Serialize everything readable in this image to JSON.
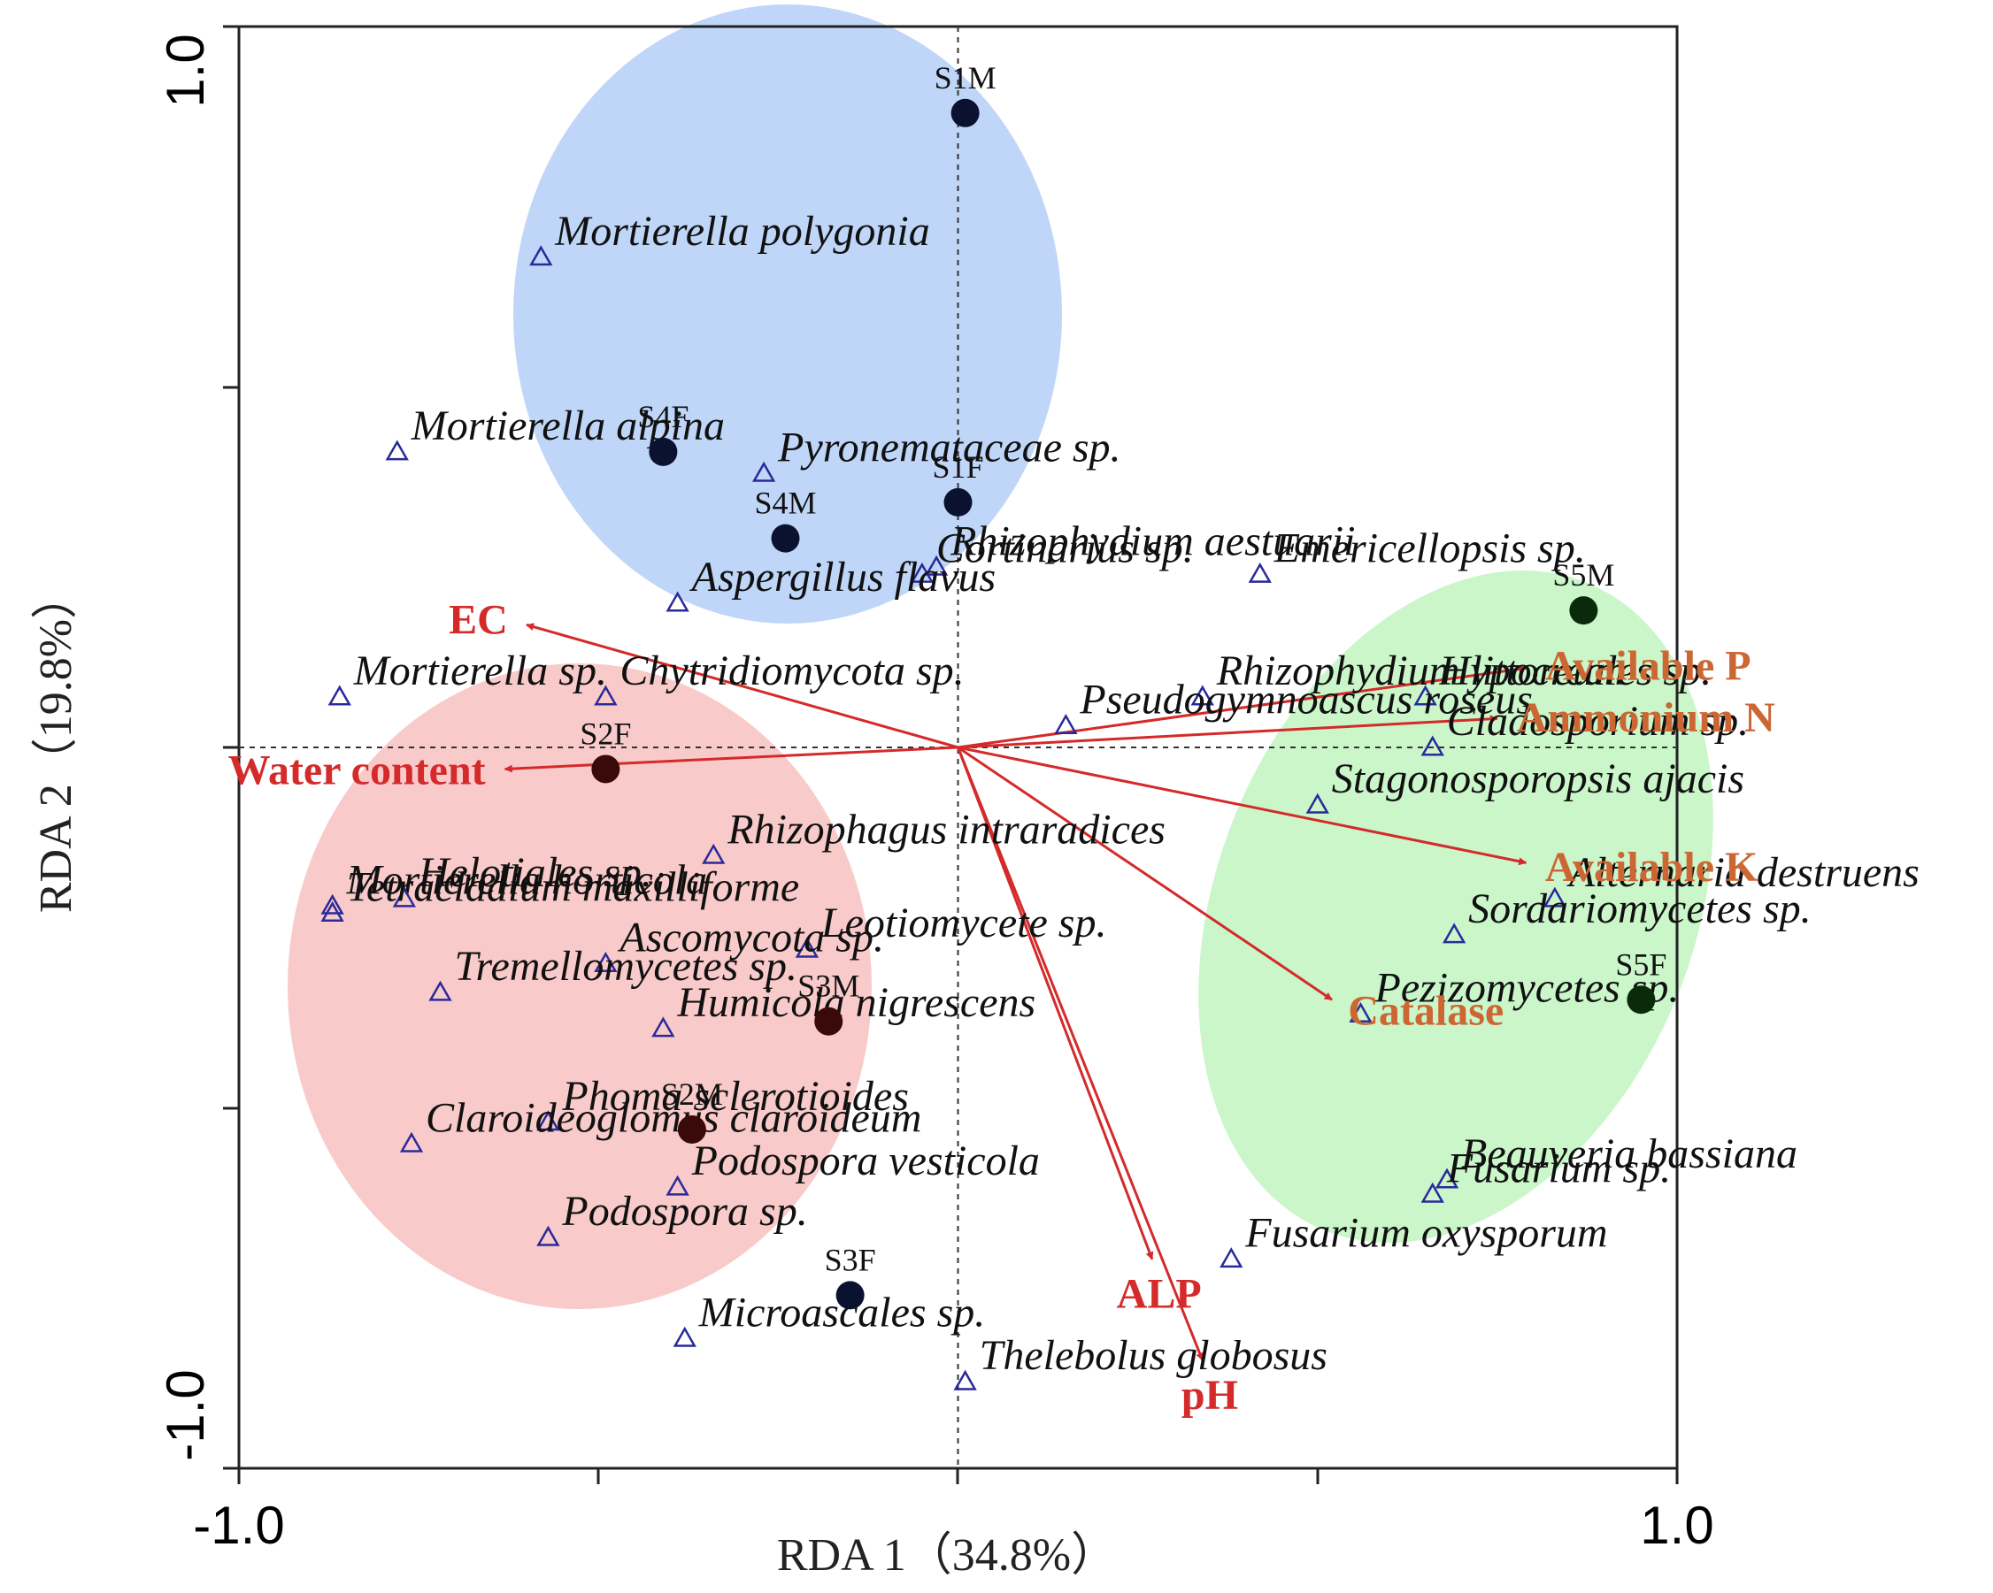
{
  "chart_data": {
    "type": "scatter",
    "title": "",
    "xlabel": "RDA 1（34.8%）",
    "ylabel": "RDA 2（19.8%）",
    "xlim": [
      -1.0,
      1.0
    ],
    "ylim": [
      -1.0,
      1.0
    ],
    "x_tick_labels": [
      "-1.0",
      "1.0"
    ],
    "y_tick_labels": [
      "1.0",
      "-1.0"
    ],
    "reference_lines": "dashed lines at x = 0 and y = 0",
    "groups": [
      {
        "color": "#b8d2f7",
        "samples": [
          "S1M",
          "S1F",
          "S4F",
          "S4M"
        ]
      },
      {
        "color": "#f8c4c4",
        "samples": [
          "S2F",
          "S2M",
          "S3M"
        ]
      },
      {
        "color": "#c4f5c4",
        "samples": [
          "S5M",
          "S5F"
        ]
      }
    ],
    "samples": [
      {
        "name": "S1M",
        "x": 0.01,
        "y": 0.88
      },
      {
        "name": "S1F",
        "x": 0.0,
        "y": 0.34
      },
      {
        "name": "S4F",
        "x": -0.41,
        "y": 0.41
      },
      {
        "name": "S4M",
        "x": -0.24,
        "y": 0.29
      },
      {
        "name": "S2F",
        "x": -0.49,
        "y": -0.03
      },
      {
        "name": "S2M",
        "x": -0.37,
        "y": -0.53
      },
      {
        "name": "S3M",
        "x": -0.18,
        "y": -0.38
      },
      {
        "name": "S3F",
        "x": -0.15,
        "y": -0.76
      },
      {
        "name": "S5M",
        "x": 0.87,
        "y": 0.19
      },
      {
        "name": "S5F",
        "x": 0.95,
        "y": -0.35
      }
    ],
    "species": [
      {
        "name": "Mortierella polygonia",
        "x": -0.58,
        "y": 0.68
      },
      {
        "name": "Mortierella alpina",
        "x": -0.78,
        "y": 0.41
      },
      {
        "name": "Pyronemataceae sp.",
        "x": -0.27,
        "y": 0.38
      },
      {
        "name": "Rhizophydium aestuarii",
        "x": -0.03,
        "y": 0.25
      },
      {
        "name": "Cortinarius sp.",
        "x": -0.05,
        "y": 0.24
      },
      {
        "name": "Aspergillus flavus",
        "x": -0.39,
        "y": 0.2
      },
      {
        "name": "Emericellopsis sp.",
        "x": 0.42,
        "y": 0.24
      },
      {
        "name": "Mortierella sp.",
        "x": -0.86,
        "y": 0.07
      },
      {
        "name": "Chytridiomycota sp.",
        "x": -0.49,
        "y": 0.07
      },
      {
        "name": "Rhizophydium littoreum",
        "x": 0.34,
        "y": 0.07
      },
      {
        "name": "Hypocreales sp.",
        "x": 0.65,
        "y": 0.07
      },
      {
        "name": "Pseudogymnoascus roseus",
        "x": 0.15,
        "y": 0.03
      },
      {
        "name": "Cladosporium sp.",
        "x": 0.66,
        "y": 0.0
      },
      {
        "name": "Stagonosporopsis ajacis",
        "x": 0.5,
        "y": -0.08
      },
      {
        "name": "Mortierella horticola",
        "x": -0.87,
        "y": -0.22
      },
      {
        "name": "Rhizophagus intraradices",
        "x": -0.34,
        "y": -0.15
      },
      {
        "name": "Helotiales sp.",
        "x": -0.77,
        "y": -0.21
      },
      {
        "name": "Alternaria destruens",
        "x": 0.83,
        "y": -0.21
      },
      {
        "name": "Tetracladium maxilliforme",
        "x": -0.87,
        "y": -0.23
      },
      {
        "name": "Leotiomycete sp.",
        "x": -0.21,
        "y": -0.28
      },
      {
        "name": "Ascomycota sp.",
        "x": -0.49,
        "y": -0.3
      },
      {
        "name": "Sordariomycetes sp.",
        "x": 0.69,
        "y": -0.26
      },
      {
        "name": "Tremellomycetes sp.",
        "x": -0.72,
        "y": -0.34
      },
      {
        "name": "Humicola nigrescens",
        "x": -0.41,
        "y": -0.39
      },
      {
        "name": "Pezizomycetes sp.",
        "x": 0.56,
        "y": -0.37
      },
      {
        "name": "Phoma sclerotioides",
        "x": -0.57,
        "y": -0.52
      },
      {
        "name": "Claroideoglomus claroideum",
        "x": -0.76,
        "y": -0.55
      },
      {
        "name": "Podospora vesticola",
        "x": -0.39,
        "y": -0.61
      },
      {
        "name": "Beauveria bassiana",
        "x": 0.68,
        "y": -0.6
      },
      {
        "name": "Fusarium sp.",
        "x": 0.66,
        "y": -0.62
      },
      {
        "name": "Podospora sp.",
        "x": -0.57,
        "y": -0.68
      },
      {
        "name": "Fusarium oxysporum",
        "x": 0.38,
        "y": -0.71
      },
      {
        "name": "Microascales sp.",
        "x": -0.38,
        "y": -0.82
      },
      {
        "name": "Thelebolus globosus",
        "x": 0.01,
        "y": -0.88
      }
    ],
    "environmental_vectors": [
      {
        "name": "EC",
        "x": -0.6,
        "y": 0.17,
        "label_color": "#d42a2a"
      },
      {
        "name": "Water content",
        "x": -0.63,
        "y": -0.03,
        "label_color": "#d42a2a"
      },
      {
        "name": "Available P",
        "x": 0.79,
        "y": 0.11,
        "label_color": "#cc6633"
      },
      {
        "name": "Ammonium N",
        "x": 0.75,
        "y": 0.04,
        "label_color": "#cc6633"
      },
      {
        "name": "Available K",
        "x": 0.79,
        "y": -0.16,
        "label_color": "#cc6633"
      },
      {
        "name": "Catalase",
        "x": 0.52,
        "y": -0.35,
        "label_color": "#cc6633"
      },
      {
        "name": "ALP",
        "x": 0.27,
        "y": -0.71,
        "label_color": "#d42a2a"
      },
      {
        "name": "pH",
        "x": 0.34,
        "y": -0.85,
        "label_color": "#d42a2a"
      }
    ]
  }
}
